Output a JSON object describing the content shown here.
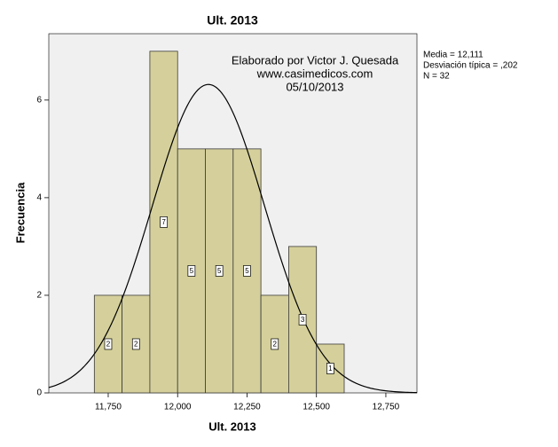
{
  "chart_data": {
    "type": "histogram",
    "title": "Ult. 2013",
    "x_label": "Ult. 2013",
    "y_label": "Frecuencia",
    "annotations": [
      "Elaborado por Victor J. Quesada",
      "www.casimedicos.com",
      "05/10/2013"
    ],
    "stats": [
      {
        "label": "Media = 12,111",
        "value": 12.111
      },
      {
        "label": "Desviación típica = ,202",
        "value": 0.202
      },
      {
        "label": "N = 32",
        "value": 32
      }
    ],
    "bins": [
      11.7,
      11.8,
      11.9,
      12.0,
      12.1,
      12.2,
      12.3,
      12.4,
      12.5,
      12.6
    ],
    "values": [
      2,
      2,
      7,
      5,
      5,
      5,
      2,
      3,
      1
    ],
    "color": "#d5d09b",
    "xlim": [
      11.536,
      12.862
    ],
    "ylim": [
      0,
      7.36
    ],
    "xticks": [
      {
        "value": 11.75,
        "label": "11,750"
      },
      {
        "value": 12.0,
        "label": "12,000"
      },
      {
        "value": 12.25,
        "label": "12,250"
      },
      {
        "value": 12.5,
        "label": "12,500"
      },
      {
        "value": 12.75,
        "label": "12,750"
      }
    ],
    "yticks": [
      0,
      2,
      4,
      6
    ]
  }
}
